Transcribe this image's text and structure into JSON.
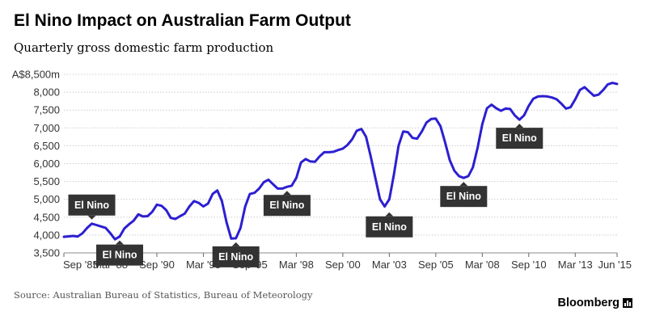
{
  "header": {
    "title": "El Nino Impact on Australian Farm Output",
    "subtitle": "Quarterly gross domestic farm production"
  },
  "footer": {
    "source": "Source: Australian Bureau of Statistics, Bureau of Meteorology",
    "brand": "Bloomberg"
  },
  "colors": {
    "line": "#2c1fd0",
    "annotation_box": "#333333",
    "grid": "#cccccc"
  },
  "chart_data": {
    "type": "line",
    "title": "El Nino Impact on Australian Farm Output",
    "subtitle": "Quarterly gross domestic farm production",
    "ylim": [
      3500,
      8500
    ],
    "xlim": [
      1985.67,
      2015.42
    ],
    "grid": "horizontal dotted",
    "y_ticks": [
      {
        "value": 3500,
        "label": "3,500"
      },
      {
        "value": 4000,
        "label": "4,000"
      },
      {
        "value": 4500,
        "label": "4,500"
      },
      {
        "value": 5000,
        "label": "5,000"
      },
      {
        "value": 5500,
        "label": "5,500"
      },
      {
        "value": 6000,
        "label": "6,000"
      },
      {
        "value": 6500,
        "label": "6,500"
      },
      {
        "value": 7000,
        "label": "7,000"
      },
      {
        "value": 7500,
        "label": "7,500"
      },
      {
        "value": 8000,
        "label": "8,000"
      },
      {
        "value": 8500,
        "label": "A$8,500m"
      }
    ],
    "x_ticks": [
      {
        "value": 1985.67,
        "label": "Sep '85"
      },
      {
        "value": 1988.17,
        "label": "Mar '88"
      },
      {
        "value": 1990.67,
        "label": "Sep '90"
      },
      {
        "value": 1993.17,
        "label": "Mar '93"
      },
      {
        "value": 1995.67,
        "label": "Sep '95"
      },
      {
        "value": 1998.17,
        "label": "Mar '98"
      },
      {
        "value": 2000.67,
        "label": "Sep '00"
      },
      {
        "value": 2003.17,
        "label": "Mar '03"
      },
      {
        "value": 2005.67,
        "label": "Sep '05"
      },
      {
        "value": 2008.17,
        "label": "Mar '08"
      },
      {
        "value": 2010.67,
        "label": "Sep '10"
      },
      {
        "value": 2013.17,
        "label": "Mar '13"
      },
      {
        "value": 2015.42,
        "label": "Jun '15"
      }
    ],
    "series": [
      {
        "values": [
          [
            1985.67,
            3950
          ],
          [
            1986.17,
            3975
          ],
          [
            1986.42,
            3960
          ],
          [
            1986.67,
            4050
          ],
          [
            1986.92,
            4200
          ],
          [
            1987.17,
            4320
          ],
          [
            1987.42,
            4280
          ],
          [
            1987.67,
            4240
          ],
          [
            1987.92,
            4200
          ],
          [
            1988.17,
            4050
          ],
          [
            1988.42,
            3880
          ],
          [
            1988.67,
            3960
          ],
          [
            1988.92,
            4180
          ],
          [
            1989.17,
            4300
          ],
          [
            1989.42,
            4400
          ],
          [
            1989.67,
            4580
          ],
          [
            1989.92,
            4520
          ],
          [
            1990.17,
            4530
          ],
          [
            1990.42,
            4650
          ],
          [
            1990.67,
            4850
          ],
          [
            1990.92,
            4820
          ],
          [
            1991.17,
            4700
          ],
          [
            1991.42,
            4480
          ],
          [
            1991.67,
            4450
          ],
          [
            1991.92,
            4530
          ],
          [
            1992.17,
            4600
          ],
          [
            1992.42,
            4800
          ],
          [
            1992.67,
            4950
          ],
          [
            1992.92,
            4900
          ],
          [
            1993.17,
            4800
          ],
          [
            1993.42,
            4880
          ],
          [
            1993.67,
            5150
          ],
          [
            1993.92,
            5250
          ],
          [
            1994.17,
            4950
          ],
          [
            1994.42,
            4350
          ],
          [
            1994.67,
            3900
          ],
          [
            1994.92,
            3910
          ],
          [
            1995.17,
            4200
          ],
          [
            1995.42,
            4800
          ],
          [
            1995.67,
            5150
          ],
          [
            1995.92,
            5180
          ],
          [
            1996.17,
            5300
          ],
          [
            1996.42,
            5480
          ],
          [
            1996.67,
            5550
          ],
          [
            1996.92,
            5420
          ],
          [
            1997.17,
            5300
          ],
          [
            1997.42,
            5300
          ],
          [
            1997.67,
            5350
          ],
          [
            1997.92,
            5380
          ],
          [
            1998.17,
            5600
          ],
          [
            1998.42,
            6030
          ],
          [
            1998.67,
            6130
          ],
          [
            1998.92,
            6060
          ],
          [
            1999.17,
            6050
          ],
          [
            1999.42,
            6200
          ],
          [
            1999.67,
            6320
          ],
          [
            1999.92,
            6320
          ],
          [
            2000.17,
            6330
          ],
          [
            2000.42,
            6380
          ],
          [
            2000.67,
            6420
          ],
          [
            2000.92,
            6520
          ],
          [
            2001.17,
            6680
          ],
          [
            2001.42,
            6920
          ],
          [
            2001.67,
            6970
          ],
          [
            2001.92,
            6750
          ],
          [
            2002.17,
            6200
          ],
          [
            2002.42,
            5600
          ],
          [
            2002.67,
            5000
          ],
          [
            2002.92,
            4800
          ],
          [
            2003.17,
            5000
          ],
          [
            2003.42,
            5700
          ],
          [
            2003.67,
            6500
          ],
          [
            2003.92,
            6900
          ],
          [
            2004.17,
            6880
          ],
          [
            2004.42,
            6720
          ],
          [
            2004.67,
            6700
          ],
          [
            2004.92,
            6900
          ],
          [
            2005.17,
            7150
          ],
          [
            2005.42,
            7250
          ],
          [
            2005.67,
            7260
          ],
          [
            2005.92,
            7050
          ],
          [
            2006.17,
            6600
          ],
          [
            2006.42,
            6100
          ],
          [
            2006.67,
            5800
          ],
          [
            2006.92,
            5650
          ],
          [
            2007.17,
            5600
          ],
          [
            2007.42,
            5650
          ],
          [
            2007.67,
            5900
          ],
          [
            2007.92,
            6450
          ],
          [
            2008.17,
            7100
          ],
          [
            2008.42,
            7550
          ],
          [
            2008.67,
            7650
          ],
          [
            2008.92,
            7550
          ],
          [
            2009.17,
            7480
          ],
          [
            2009.42,
            7540
          ],
          [
            2009.67,
            7530
          ],
          [
            2009.92,
            7350
          ],
          [
            2010.17,
            7230
          ],
          [
            2010.42,
            7350
          ],
          [
            2010.67,
            7620
          ],
          [
            2010.92,
            7820
          ],
          [
            2011.17,
            7880
          ],
          [
            2011.42,
            7890
          ],
          [
            2011.67,
            7880
          ],
          [
            2011.92,
            7850
          ],
          [
            2012.17,
            7800
          ],
          [
            2012.42,
            7680
          ],
          [
            2012.67,
            7540
          ],
          [
            2012.92,
            7580
          ],
          [
            2013.17,
            7800
          ],
          [
            2013.42,
            8060
          ],
          [
            2013.67,
            8140
          ],
          [
            2013.92,
            8020
          ],
          [
            2014.17,
            7900
          ],
          [
            2014.42,
            7930
          ],
          [
            2014.67,
            8060
          ],
          [
            2014.92,
            8220
          ],
          [
            2015.17,
            8260
          ],
          [
            2015.42,
            8230
          ]
        ]
      }
    ],
    "annotations": [
      {
        "text": "El Nino",
        "x": 1987.17,
        "y": 4320,
        "side": "above"
      },
      {
        "text": "El Nino",
        "x": 1988.67,
        "y": 3960,
        "side": "below"
      },
      {
        "text": "El Nino",
        "x": 1994.92,
        "y": 3910,
        "side": "below"
      },
      {
        "text": "El Nino",
        "x": 1997.67,
        "y": 5350,
        "side": "below"
      },
      {
        "text": "El Nino",
        "x": 2003.17,
        "y": 4750,
        "side": "below"
      },
      {
        "text": "El Nino",
        "x": 2007.17,
        "y": 5600,
        "side": "below"
      },
      {
        "text": "El Nino",
        "x": 2010.17,
        "y": 7230,
        "side": "below"
      }
    ]
  }
}
